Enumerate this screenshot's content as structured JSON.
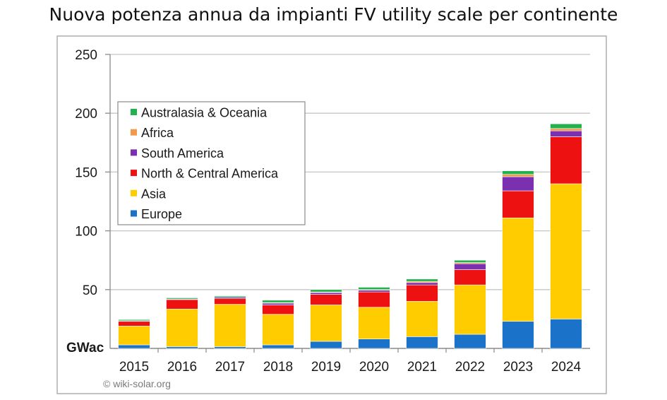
{
  "chart_data": {
    "type": "bar",
    "stacked": true,
    "title": "Nuova potenza annua da impianti FV utility scale per continente",
    "ylabel": "GWac",
    "xlabel": "",
    "ylim": [
      0,
      250
    ],
    "yticks": [
      50,
      100,
      150,
      200,
      250
    ],
    "grid": true,
    "legend_position": "top-left",
    "credit": "© wiki-solar.org",
    "categories": [
      "2015",
      "2016",
      "2017",
      "2018",
      "2019",
      "2020",
      "2021",
      "2022",
      "2023",
      "2024"
    ],
    "series": [
      {
        "name": "Europe",
        "color": "#1a73c8",
        "values": [
          3,
          1.5,
          1.5,
          3,
          6,
          8,
          10,
          12,
          23,
          25
        ]
      },
      {
        "name": "Asia",
        "color": "#ffcc00",
        "values": [
          16,
          32,
          36,
          26,
          31,
          27,
          30,
          42,
          88,
          115
        ]
      },
      {
        "name": "North & Central America",
        "color": "#ee1111",
        "values": [
          4,
          8,
          5,
          8,
          9,
          13,
          14,
          13,
          23,
          40
        ]
      },
      {
        "name": "South America",
        "color": "#7b30b0",
        "values": [
          0.5,
          0.5,
          1,
          1.5,
          1.5,
          1.5,
          2,
          5,
          12,
          5
        ]
      },
      {
        "name": "Africa",
        "color": "#f29a4c",
        "values": [
          0,
          0,
          0,
          0.5,
          0.5,
          0.5,
          1,
          1,
          2,
          2
        ]
      },
      {
        "name": "Australasia & Oceania",
        "color": "#22b14c",
        "values": [
          1,
          1,
          1,
          2,
          2,
          2,
          2,
          2,
          3,
          4
        ]
      }
    ]
  }
}
